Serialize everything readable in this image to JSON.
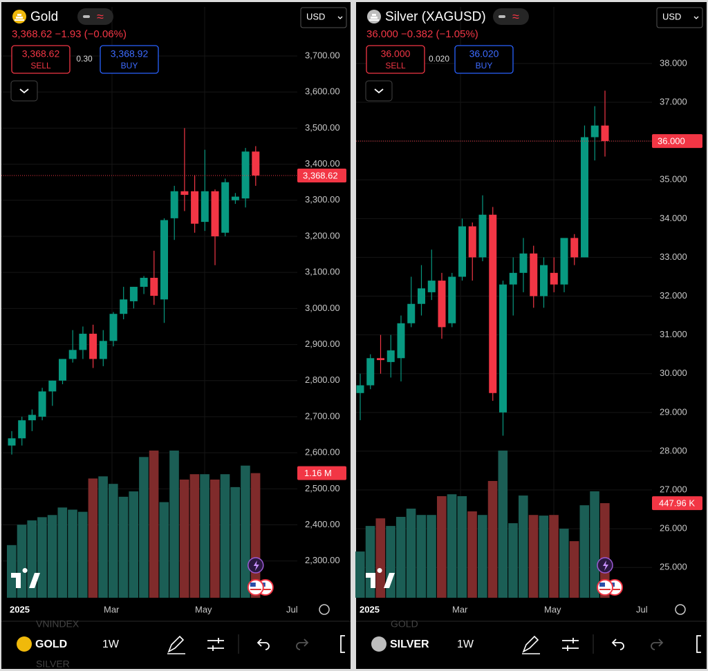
{
  "chart_data": [
    {
      "type": "candlestick",
      "title": "Gold",
      "quote_line": "3,368.62 −1.93 (−0.06%)",
      "sell": {
        "price": "3,368.62",
        "label": "SELL"
      },
      "spread": "0.30",
      "buy": {
        "price": "3,368.92",
        "label": "BUY"
      },
      "currency": "USD",
      "open": [
        2620,
        2640,
        2690,
        2700,
        2770,
        2800,
        2860,
        2885,
        2930,
        2860,
        2910,
        2985,
        3020,
        3060,
        3085,
        3025,
        3250,
        3325,
        3325,
        3240,
        3325,
        3210,
        3300,
        3305,
        3435
      ],
      "high": [
        2660,
        2700,
        2720,
        2780,
        2800,
        2860,
        2940,
        2950,
        2955,
        2940,
        2990,
        3060,
        3060,
        3090,
        3160,
        3250,
        3340,
        3500,
        3370,
        3440,
        3330,
        3360,
        3320,
        3445,
        3450
      ],
      "low": [
        2595,
        2620,
        2660,
        2690,
        2730,
        2790,
        2850,
        2860,
        2835,
        2840,
        2895,
        2970,
        3000,
        3040,
        3010,
        2960,
        3190,
        3270,
        3210,
        3215,
        3120,
        3200,
        3290,
        3280,
        3340
      ],
      "close": [
        2640,
        2690,
        2705,
        2770,
        2800,
        2860,
        2885,
        2930,
        2860,
        2910,
        2985,
        3025,
        3060,
        3085,
        3035,
        3245,
        3325,
        3315,
        3235,
        3325,
        3200,
        3350,
        3310,
        3435,
        3368.62
      ],
      "volume": {
        "values": [
          0.49,
          0.68,
          0.72,
          0.75,
          0.77,
          0.84,
          0.82,
          0.8,
          1.11,
          1.13,
          1.06,
          0.94,
          0.99,
          1.31,
          1.37,
          0.89,
          1.37,
          1.1,
          1.15,
          1.15,
          1.1,
          1.15,
          1.03,
          1.23,
          1.16
        ],
        "last_label": "1.16 M"
      },
      "price_line": {
        "value": 3368.62,
        "label": "3,368.62"
      },
      "ylim": [
        2198,
        3836
      ],
      "yticks": [
        {
          "value": 2300,
          "label": "2,300.00"
        },
        {
          "value": 2400,
          "label": "2,400.00"
        },
        {
          "value": 2500,
          "label": "2,500.00"
        },
        {
          "value": 2600,
          "label": "2,600.00"
        },
        {
          "value": 2700,
          "label": "2,700.00"
        },
        {
          "value": 2800,
          "label": "2,800.00"
        },
        {
          "value": 2900,
          "label": "2,900.00"
        },
        {
          "value": 3000,
          "label": "3,000.00"
        },
        {
          "value": 3100,
          "label": "3,100.00"
        },
        {
          "value": 3200,
          "label": "3,200.00"
        },
        {
          "value": 3300,
          "label": "3,300.00"
        },
        {
          "value": 3400,
          "label": "3,400.00"
        },
        {
          "value": 3500,
          "label": "3,500.00"
        },
        {
          "value": 3600,
          "label": "3,600.00"
        },
        {
          "value": 3700,
          "label": "3,700.00"
        }
      ],
      "x_labels": [
        "2025",
        "Mar",
        "May",
        "Jul"
      ],
      "up_color": "#089981",
      "down_color": "#f23645",
      "volume_up_color": "#1b5e55",
      "volume_down_color": "#7f2b2b",
      "toolbar": {
        "symbol": "GOLD",
        "interval": "1W",
        "prev": "VNINDEX",
        "next": "SILVER"
      }
    },
    {
      "type": "candlestick",
      "title": "Silver (XAGUSD)",
      "quote_line": "36.000 −0.382 (−1.05%)",
      "sell": {
        "price": "36.000",
        "label": "SELL"
      },
      "spread": "0.020",
      "buy": {
        "price": "36.020",
        "label": "BUY"
      },
      "currency": "USD",
      "open": [
        29.5,
        29.7,
        30.4,
        30.3,
        30.4,
        31.3,
        31.8,
        32.1,
        32.4,
        31.3,
        32.5,
        33.8,
        33.0,
        34.1,
        29.0,
        32.3,
        32.6,
        33.1,
        32.0,
        32.6,
        32.3,
        33.5,
        33.0,
        36.1,
        36.4
      ],
      "high": [
        30.0,
        30.5,
        31.0,
        31.0,
        31.5,
        32.5,
        32.8,
        33.2,
        32.6,
        32.6,
        34.0,
        33.9,
        34.6,
        34.3,
        32.4,
        33.0,
        33.5,
        33.3,
        33.0,
        33.0,
        33.4,
        33.6,
        36.4,
        36.9,
        37.3
      ],
      "low": [
        28.8,
        29.6,
        30.0,
        29.9,
        29.8,
        31.2,
        31.5,
        31.9,
        30.9,
        31.2,
        32.4,
        32.4,
        32.9,
        29.3,
        28.4,
        31.5,
        32.1,
        31.7,
        31.7,
        32.1,
        32.1,
        32.8,
        33.0,
        35.5,
        35.6
      ],
      "close": [
        29.7,
        30.4,
        30.35,
        30.6,
        31.3,
        31.8,
        32.2,
        32.4,
        31.2,
        32.5,
        33.8,
        33.0,
        34.1,
        29.5,
        32.3,
        32.6,
        33.1,
        32.0,
        32.8,
        32.3,
        33.5,
        33.0,
        36.1,
        36.4,
        36.0
      ],
      "volume": {
        "values": [
          219,
          340,
          376,
          340,
          383,
          422,
          392,
          392,
          481,
          490,
          481,
          409,
          392,
          553,
          697,
          353,
          484,
          392,
          389,
          392,
          327,
          268,
          438,
          504,
          447.96
        ],
        "last_label": "447.96 K"
      },
      "price_line": {
        "value": 36.0,
        "label": "36.000"
      },
      "ylim": [
        24.22,
        39.46
      ],
      "yticks": [
        {
          "value": 25,
          "label": "25.000"
        },
        {
          "value": 26,
          "label": "26.000"
        },
        {
          "value": 27,
          "label": "27.000"
        },
        {
          "value": 28,
          "label": "28.000"
        },
        {
          "value": 29,
          "label": "29.000"
        },
        {
          "value": 30,
          "label": "30.000"
        },
        {
          "value": 31,
          "label": "31.000"
        },
        {
          "value": 32,
          "label": "32.000"
        },
        {
          "value": 33,
          "label": "33.000"
        },
        {
          "value": 34,
          "label": "34.000"
        },
        {
          "value": 35,
          "label": "35.000"
        },
        {
          "value": 36,
          "label": "36.000"
        },
        {
          "value": 37,
          "label": "37.000"
        },
        {
          "value": 38,
          "label": "38.000"
        }
      ],
      "x_labels": [
        "2025",
        "Mar",
        "May",
        "Jul"
      ],
      "up_color": "#089981",
      "down_color": "#f23645",
      "volume_up_color": "#1b5e55",
      "volume_down_color": "#7f2b2b",
      "toolbar": {
        "symbol": "SILVER",
        "interval": "1W",
        "prev": "GOLD"
      }
    }
  ]
}
